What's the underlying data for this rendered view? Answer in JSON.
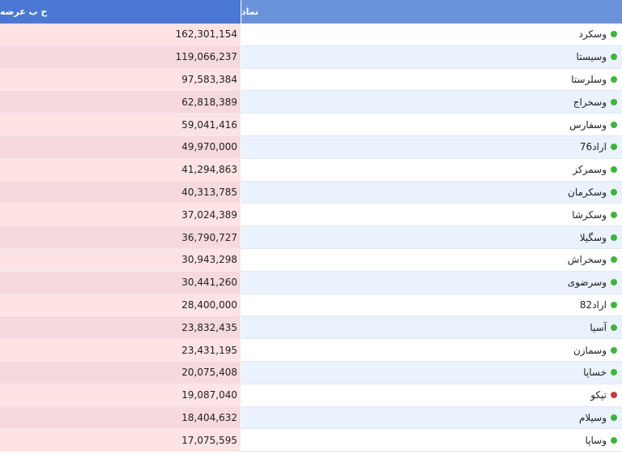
{
  "table": {
    "headers": {
      "offer_volume": "ح ب عرضه",
      "symbol": "نماد"
    },
    "status_colors": {
      "up": "#3db53a",
      "down": "#c43c3c"
    },
    "rows": [
      {
        "symbol": "وسکرد",
        "offer_volume": "162,301,154",
        "status": "up"
      },
      {
        "symbol": "وسیستا",
        "offer_volume": "119,066,237",
        "status": "up"
      },
      {
        "symbol": "وسلرستا",
        "offer_volume": "97,583,384",
        "status": "up"
      },
      {
        "symbol": "وسخراج",
        "offer_volume": "62,818,389",
        "status": "up"
      },
      {
        "symbol": "وسفارس",
        "offer_volume": "59,041,416",
        "status": "up"
      },
      {
        "symbol": "اراد76",
        "offer_volume": "49,970,000",
        "status": "up"
      },
      {
        "symbol": "وسمرکز",
        "offer_volume": "41,294,863",
        "status": "up"
      },
      {
        "symbol": "وسکرمان",
        "offer_volume": "40,313,785",
        "status": "up"
      },
      {
        "symbol": "وسکرشا",
        "offer_volume": "37,024,389",
        "status": "up"
      },
      {
        "symbol": "وسگیلا",
        "offer_volume": "36,790,727",
        "status": "up"
      },
      {
        "symbol": "وسخراش",
        "offer_volume": "30,943,298",
        "status": "up"
      },
      {
        "symbol": "وسرضوی",
        "offer_volume": "30,441,260",
        "status": "up"
      },
      {
        "symbol": "اراد82",
        "offer_volume": "28,400,000",
        "status": "up"
      },
      {
        "symbol": "آسیا",
        "offer_volume": "23,832,435",
        "status": "up"
      },
      {
        "symbol": "وسمازن",
        "offer_volume": "23,431,195",
        "status": "up"
      },
      {
        "symbol": "خساپا",
        "offer_volume": "20,075,408",
        "status": "up"
      },
      {
        "symbol": "تپکو",
        "offer_volume": "19,087,040",
        "status": "down"
      },
      {
        "symbol": "وسیلام",
        "offer_volume": "18,404,632",
        "status": "up"
      },
      {
        "symbol": "وساپا",
        "offer_volume": "17,075,595",
        "status": "up"
      }
    ]
  }
}
